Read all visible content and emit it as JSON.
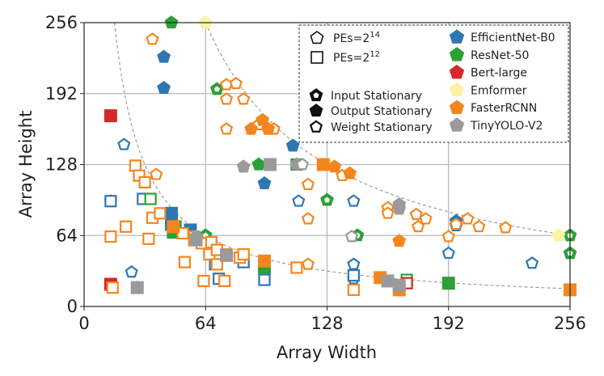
{
  "chart_data": {
    "type": "scatter",
    "xlabel": "Array Width",
    "ylabel": "Array Height",
    "xlim": [
      0,
      256
    ],
    "ylim": [
      0,
      256
    ],
    "xticks": [
      0,
      64,
      128,
      192,
      256
    ],
    "yticks": [
      0,
      64,
      128,
      192,
      256
    ],
    "grid": true,
    "reference_curves": [
      {
        "label": "PEs=2^14",
        "product": 16384
      },
      {
        "label": "PEs=2^12",
        "product": 4096
      }
    ],
    "legend_shapes": [
      {
        "key": "pe14",
        "base": "PEs=2",
        "exp": "14",
        "marker": "pentagon-outline"
      },
      {
        "key": "pe12",
        "base": "PEs=2",
        "exp": "12",
        "marker": "square-outline"
      }
    ],
    "legend_dataflows": [
      {
        "key": "input",
        "label": "Input Stationary",
        "style": "half"
      },
      {
        "key": "output",
        "label": "Output Stationary",
        "style": "filled"
      },
      {
        "key": "weight",
        "label": "Weight Stationary",
        "style": "outline"
      }
    ],
    "series": [
      {
        "name": "EfficientNet-B0",
        "color": "#2e77b2"
      },
      {
        "name": "ResNet-50",
        "color": "#2ca037"
      },
      {
        "name": "Bert-large",
        "color": "#d6272a"
      },
      {
        "name": "Emformer",
        "color": "#fbf3a4"
      },
      {
        "name": "FasterRCNN",
        "color": "#f5861f"
      },
      {
        "name": "TinyYOLO-V2",
        "color": "#9a9a9a"
      }
    ],
    "points": [
      {
        "s": 0,
        "m": "p",
        "f": "o",
        "x": 42,
        "y": 197
      },
      {
        "s": 0,
        "m": "p",
        "f": "o",
        "x": 42,
        "y": 225
      },
      {
        "s": 0,
        "m": "p",
        "f": "w",
        "x": 21,
        "y": 146
      },
      {
        "s": 0,
        "m": "p",
        "f": "w",
        "x": 14,
        "y": 95
      },
      {
        "s": 0,
        "m": "p",
        "f": "w",
        "x": 25,
        "y": 31
      },
      {
        "s": 0,
        "m": "p",
        "f": "w",
        "x": 28,
        "y": 17
      },
      {
        "s": 0,
        "m": "p",
        "f": "w",
        "x": 113,
        "y": 95
      },
      {
        "s": 0,
        "m": "p",
        "f": "w",
        "x": 142,
        "y": 95
      },
      {
        "s": 0,
        "m": "p",
        "f": "w",
        "x": 142,
        "y": 38
      },
      {
        "s": 0,
        "m": "p",
        "f": "w",
        "x": 142,
        "y": 25
      },
      {
        "s": 0,
        "m": "p",
        "f": "w",
        "x": 192,
        "y": 48
      },
      {
        "s": 0,
        "m": "p",
        "f": "w",
        "x": 236,
        "y": 39
      },
      {
        "s": 0,
        "m": "p",
        "f": "o",
        "x": 95,
        "y": 111
      },
      {
        "s": 0,
        "m": "p",
        "f": "o",
        "x": 110,
        "y": 145
      },
      {
        "s": 0,
        "m": "p",
        "f": "o",
        "x": 196,
        "y": 77
      },
      {
        "s": 0,
        "m": "p",
        "f": "o",
        "x": 196,
        "y": 73
      },
      {
        "s": 0,
        "m": "s",
        "f": "o",
        "x": 46,
        "y": 74
      },
      {
        "s": 0,
        "m": "s",
        "f": "o",
        "x": 46,
        "y": 84
      },
      {
        "s": 0,
        "m": "s",
        "f": "o",
        "x": 56,
        "y": 69
      },
      {
        "s": 0,
        "m": "s",
        "f": "w",
        "x": 14,
        "y": 95
      },
      {
        "s": 0,
        "m": "s",
        "f": "w",
        "x": 31,
        "y": 97
      },
      {
        "s": 0,
        "m": "s",
        "f": "w",
        "x": 66,
        "y": 51
      },
      {
        "s": 0,
        "m": "s",
        "f": "w",
        "x": 69,
        "y": 38
      },
      {
        "s": 0,
        "m": "s",
        "f": "w",
        "x": 71,
        "y": 25
      },
      {
        "s": 0,
        "m": "s",
        "f": "w",
        "x": 84,
        "y": 40
      },
      {
        "s": 0,
        "m": "s",
        "f": "w",
        "x": 95,
        "y": 28
      },
      {
        "s": 0,
        "m": "s",
        "f": "w",
        "x": 95,
        "y": 24
      },
      {
        "s": 0,
        "m": "s",
        "f": "w",
        "x": 28,
        "y": 17
      },
      {
        "s": 0,
        "m": "s",
        "f": "w",
        "x": 142,
        "y": 28
      },
      {
        "s": 1,
        "m": "p",
        "f": "o",
        "x": 46,
        "y": 256
      },
      {
        "s": 1,
        "m": "p",
        "f": "o",
        "x": 92,
        "y": 128
      },
      {
        "s": 1,
        "m": "p",
        "f": "h",
        "x": 70,
        "y": 196
      },
      {
        "s": 1,
        "m": "p",
        "f": "h",
        "x": 128,
        "y": 96
      },
      {
        "s": 1,
        "m": "p",
        "f": "h",
        "x": 64,
        "y": 64
      },
      {
        "s": 1,
        "m": "p",
        "f": "h",
        "x": 256,
        "y": 64
      },
      {
        "s": 1,
        "m": "p",
        "f": "h",
        "x": 256,
        "y": 48
      },
      {
        "s": 1,
        "m": "p",
        "f": "h",
        "x": 144,
        "y": 64
      },
      {
        "s": 1,
        "m": "s",
        "f": "o",
        "x": 47,
        "y": 67
      },
      {
        "s": 1,
        "m": "s",
        "f": "o",
        "x": 48,
        "y": 72
      },
      {
        "s": 1,
        "m": "s",
        "f": "o",
        "x": 95,
        "y": 35
      },
      {
        "s": 1,
        "m": "s",
        "f": "o",
        "x": 192,
        "y": 21
      },
      {
        "s": 1,
        "m": "s",
        "f": "w",
        "x": 35,
        "y": 97
      },
      {
        "s": 1,
        "m": "s",
        "f": "w",
        "x": 112,
        "y": 128
      },
      {
        "s": 1,
        "m": "s",
        "f": "w",
        "x": 170,
        "y": 24
      },
      {
        "s": 2,
        "m": "s",
        "f": "o",
        "x": 14,
        "y": 172
      },
      {
        "s": 2,
        "m": "s",
        "f": "o",
        "x": 14,
        "y": 20
      },
      {
        "s": 2,
        "m": "s",
        "f": "w",
        "x": 170,
        "y": 21
      },
      {
        "s": 3,
        "m": "p",
        "f": "o",
        "x": 64,
        "y": 256
      },
      {
        "s": 3,
        "m": "p",
        "f": "o",
        "x": 128,
        "y": 128
      },
      {
        "s": 3,
        "m": "p",
        "f": "o",
        "x": 250,
        "y": 64
      },
      {
        "s": 4,
        "m": "p",
        "f": "w",
        "x": 36,
        "y": 241
      },
      {
        "s": 4,
        "m": "p",
        "f": "w",
        "x": 75,
        "y": 200
      },
      {
        "s": 4,
        "m": "p",
        "f": "w",
        "x": 75,
        "y": 187
      },
      {
        "s": 4,
        "m": "p",
        "f": "w",
        "x": 80,
        "y": 201
      },
      {
        "s": 4,
        "m": "p",
        "f": "w",
        "x": 84,
        "y": 187
      },
      {
        "s": 4,
        "m": "p",
        "f": "w",
        "x": 75,
        "y": 160
      },
      {
        "s": 4,
        "m": "p",
        "f": "w",
        "x": 92,
        "y": 164
      },
      {
        "s": 4,
        "m": "p",
        "f": "w",
        "x": 100,
        "y": 160
      },
      {
        "s": 4,
        "m": "p",
        "f": "w",
        "x": 38,
        "y": 119
      },
      {
        "s": 4,
        "m": "p",
        "f": "w",
        "x": 118,
        "y": 110
      },
      {
        "s": 4,
        "m": "p",
        "f": "w",
        "x": 118,
        "y": 79
      },
      {
        "s": 4,
        "m": "p",
        "f": "w",
        "x": 136,
        "y": 118
      },
      {
        "s": 4,
        "m": "p",
        "f": "w",
        "x": 160,
        "y": 89
      },
      {
        "s": 4,
        "m": "p",
        "f": "w",
        "x": 160,
        "y": 84
      },
      {
        "s": 4,
        "m": "p",
        "f": "w",
        "x": 175,
        "y": 83
      },
      {
        "s": 4,
        "m": "p",
        "f": "w",
        "x": 176,
        "y": 72
      },
      {
        "s": 4,
        "m": "p",
        "f": "w",
        "x": 180,
        "y": 79
      },
      {
        "s": 4,
        "m": "p",
        "f": "w",
        "x": 196,
        "y": 74
      },
      {
        "s": 4,
        "m": "p",
        "f": "w",
        "x": 202,
        "y": 79
      },
      {
        "s": 4,
        "m": "p",
        "f": "w",
        "x": 208,
        "y": 72
      },
      {
        "s": 4,
        "m": "p",
        "f": "w",
        "x": 222,
        "y": 71
      },
      {
        "s": 4,
        "m": "p",
        "f": "w",
        "x": 192,
        "y": 63
      },
      {
        "s": 4,
        "m": "p",
        "f": "w",
        "x": 118,
        "y": 38
      },
      {
        "s": 4,
        "m": "p",
        "f": "o",
        "x": 88,
        "y": 160
      },
      {
        "s": 4,
        "m": "p",
        "f": "o",
        "x": 94,
        "y": 168
      },
      {
        "s": 4,
        "m": "p",
        "f": "o",
        "x": 97,
        "y": 160
      },
      {
        "s": 4,
        "m": "p",
        "f": "o",
        "x": 132,
        "y": 126
      },
      {
        "s": 4,
        "m": "p",
        "f": "o",
        "x": 140,
        "y": 120
      },
      {
        "s": 4,
        "m": "p",
        "f": "o",
        "x": 166,
        "y": 59
      },
      {
        "s": 4,
        "m": "s",
        "f": "w",
        "x": 14,
        "y": 63
      },
      {
        "s": 4,
        "m": "s",
        "f": "w",
        "x": 15,
        "y": 17
      },
      {
        "s": 4,
        "m": "s",
        "f": "w",
        "x": 22,
        "y": 72
      },
      {
        "s": 4,
        "m": "s",
        "f": "w",
        "x": 27,
        "y": 127
      },
      {
        "s": 4,
        "m": "s",
        "f": "w",
        "x": 29,
        "y": 118
      },
      {
        "s": 4,
        "m": "s",
        "f": "w",
        "x": 32,
        "y": 112
      },
      {
        "s": 4,
        "m": "s",
        "f": "w",
        "x": 34,
        "y": 61
      },
      {
        "s": 4,
        "m": "s",
        "f": "w",
        "x": 36,
        "y": 80
      },
      {
        "s": 4,
        "m": "s",
        "f": "w",
        "x": 40,
        "y": 84
      },
      {
        "s": 4,
        "m": "s",
        "f": "w",
        "x": 52,
        "y": 66
      },
      {
        "s": 4,
        "m": "s",
        "f": "w",
        "x": 58,
        "y": 63
      },
      {
        "s": 4,
        "m": "s",
        "f": "w",
        "x": 58,
        "y": 60
      },
      {
        "s": 4,
        "m": "s",
        "f": "w",
        "x": 62,
        "y": 57
      },
      {
        "s": 4,
        "m": "s",
        "f": "w",
        "x": 67,
        "y": 58
      },
      {
        "s": 4,
        "m": "s",
        "f": "w",
        "x": 66,
        "y": 47
      },
      {
        "s": 4,
        "m": "s",
        "f": "w",
        "x": 70,
        "y": 51
      },
      {
        "s": 4,
        "m": "s",
        "f": "w",
        "x": 75,
        "y": 47
      },
      {
        "s": 4,
        "m": "s",
        "f": "w",
        "x": 82,
        "y": 44
      },
      {
        "s": 4,
        "m": "s",
        "f": "w",
        "x": 84,
        "y": 47
      },
      {
        "s": 4,
        "m": "s",
        "f": "w",
        "x": 53,
        "y": 40
      },
      {
        "s": 4,
        "m": "s",
        "f": "w",
        "x": 63,
        "y": 23
      },
      {
        "s": 4,
        "m": "s",
        "f": "w",
        "x": 74,
        "y": 23
      },
      {
        "s": 4,
        "m": "s",
        "f": "w",
        "x": 70,
        "y": 38
      },
      {
        "s": 4,
        "m": "s",
        "f": "w",
        "x": 112,
        "y": 35
      },
      {
        "s": 4,
        "m": "s",
        "f": "w",
        "x": 142,
        "y": 15
      },
      {
        "s": 4,
        "m": "s",
        "f": "o",
        "x": 47,
        "y": 72
      },
      {
        "s": 4,
        "m": "s",
        "f": "o",
        "x": 95,
        "y": 41
      },
      {
        "s": 4,
        "m": "s",
        "f": "o",
        "x": 126,
        "y": 128
      },
      {
        "s": 4,
        "m": "s",
        "f": "o",
        "x": 156,
        "y": 26
      },
      {
        "s": 4,
        "m": "s",
        "f": "o",
        "x": 166,
        "y": 15
      },
      {
        "s": 4,
        "m": "s",
        "f": "o",
        "x": 256,
        "y": 15
      },
      {
        "s": 5,
        "m": "p",
        "f": "o",
        "x": 84,
        "y": 126
      },
      {
        "s": 5,
        "m": "p",
        "f": "o",
        "x": 112,
        "y": 128
      },
      {
        "s": 5,
        "m": "p",
        "f": "w",
        "x": 115,
        "y": 128
      },
      {
        "s": 5,
        "m": "p",
        "f": "o",
        "x": 166,
        "y": 88
      },
      {
        "s": 5,
        "m": "p",
        "f": "o",
        "x": 166,
        "y": 92
      },
      {
        "s": 5,
        "m": "p",
        "f": "o",
        "x": 59,
        "y": 63
      },
      {
        "s": 5,
        "m": "p",
        "f": "w",
        "x": 141,
        "y": 63
      },
      {
        "s": 5,
        "m": "s",
        "f": "o",
        "x": 98,
        "y": 128
      },
      {
        "s": 5,
        "m": "s",
        "f": "o",
        "x": 160,
        "y": 23
      },
      {
        "s": 5,
        "m": "s",
        "f": "o",
        "x": 166,
        "y": 19
      },
      {
        "s": 5,
        "m": "s",
        "f": "o",
        "x": 28,
        "y": 17
      },
      {
        "s": 5,
        "m": "s",
        "f": "o",
        "x": 59,
        "y": 60
      },
      {
        "s": 5,
        "m": "s",
        "f": "o",
        "x": 75,
        "y": 46
      }
    ]
  }
}
